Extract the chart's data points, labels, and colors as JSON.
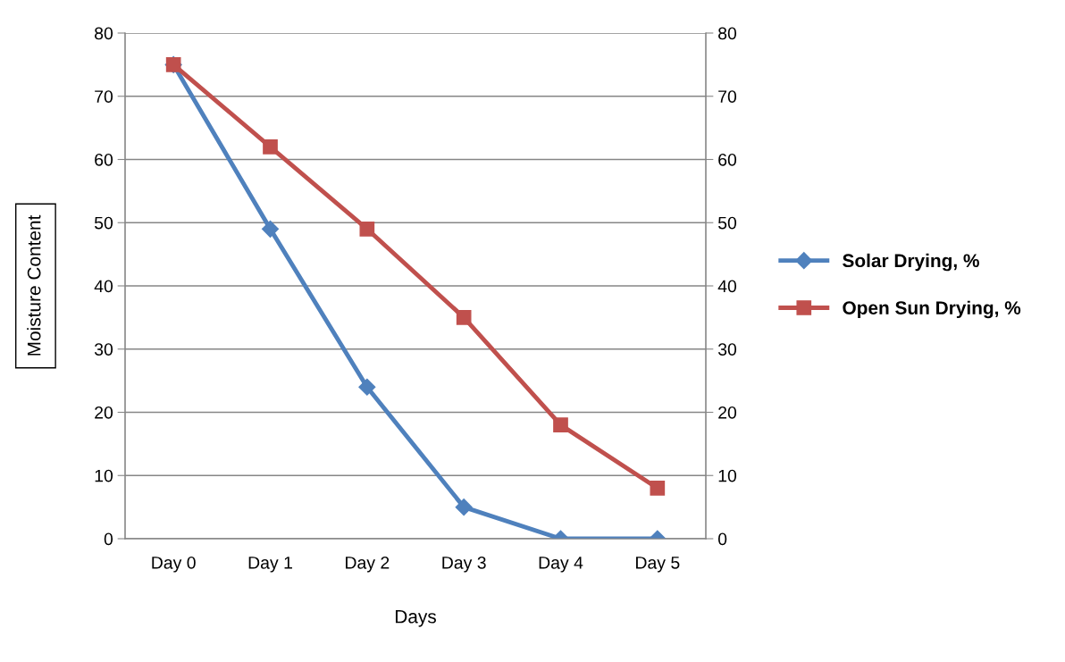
{
  "chart_data": {
    "type": "line",
    "xlabel": "Days",
    "ylabel": "Moisture Content",
    "categories": [
      "Day 0",
      "Day 1",
      "Day 2",
      "Day 3",
      "Day 4",
      "Day 5"
    ],
    "series": [
      {
        "name": "Solar Drying, %",
        "color": "#4f81bd",
        "marker": "diamond",
        "values": [
          75,
          49,
          24,
          5,
          0,
          0
        ]
      },
      {
        "name": "Open Sun Drying, %",
        "color": "#c0504d",
        "marker": "square",
        "values": [
          75,
          62,
          49,
          35,
          18,
          8
        ]
      }
    ],
    "ylim": [
      0,
      80
    ],
    "yticks": [
      0,
      10,
      20,
      30,
      40,
      50,
      60,
      70,
      80
    ],
    "y2lim": [
      0,
      80
    ],
    "y2ticks": [
      0,
      10,
      20,
      30,
      40,
      50,
      60,
      70,
      80
    ],
    "grid": "y",
    "legend": "right",
    "line_style": "solid"
  }
}
